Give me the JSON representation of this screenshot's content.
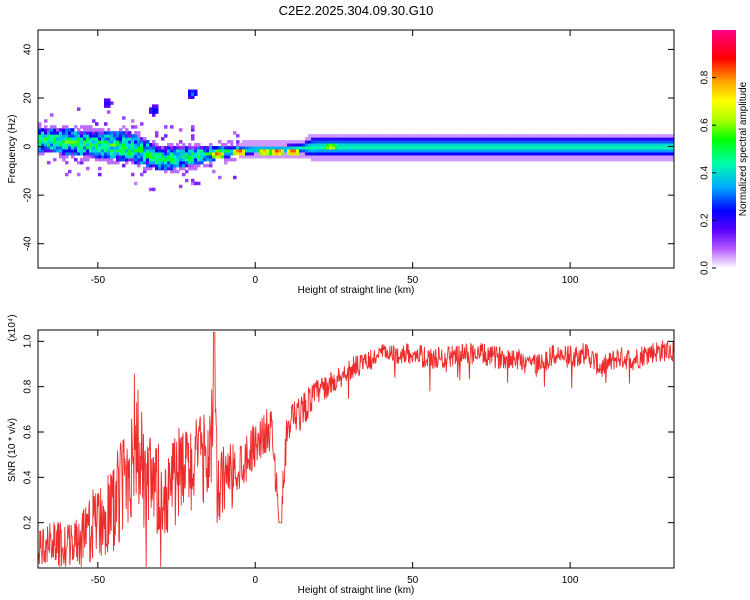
{
  "title": "C2E2.2025.304.09.30.G10",
  "chart_data": [
    {
      "type": "heatmap",
      "xlabel": "Height of straight line (km)",
      "ylabel": "Frequency (Hz)",
      "xlim": [
        -69,
        133
      ],
      "ylim": [
        -50,
        48
      ],
      "xticks": [
        -50,
        0,
        50,
        100
      ],
      "yticks": [
        -40,
        -20,
        0,
        20,
        40
      ],
      "colorbar": {
        "label": "Normalized spectral amplitude",
        "range": [
          0,
          1
        ],
        "ticks": [
          "0.0",
          "0.2",
          "0.4",
          "0.6",
          "0.8"
        ],
        "tick_values": [
          0,
          0.2,
          0.4,
          0.6,
          0.8
        ],
        "colors": [
          "#ffffff",
          "#b45bff",
          "#5a00ff",
          "#0000ff",
          "#00aaff",
          "#00ffaa",
          "#00ff00",
          "#aaff00",
          "#ffff00",
          "#ffaa00",
          "#ff0000",
          "#ff0088"
        ]
      },
      "band": {
        "center_hz": [
          [
            -69,
            3
          ],
          [
            -60,
            2
          ],
          [
            -50,
            1
          ],
          [
            -40,
            0
          ],
          [
            -30,
            -5
          ],
          [
            -20,
            -4
          ],
          [
            -10,
            -2
          ],
          [
            0,
            -1
          ],
          [
            10,
            -1
          ],
          [
            20,
            0
          ],
          [
            50,
            0
          ],
          [
            133,
            0
          ]
        ],
        "halfwidth_hz": [
          [
            -69,
            4
          ],
          [
            -40,
            5
          ],
          [
            -20,
            3
          ],
          [
            -5,
            1
          ],
          [
            15,
            1
          ],
          [
            18,
            3
          ],
          [
            133,
            3
          ]
        ]
      },
      "hotspots": [
        {
          "x": -12,
          "y": -3,
          "amp": 0.9
        },
        {
          "x": -5,
          "y": -2,
          "amp": 0.95
        },
        {
          "x": 3,
          "y": -2,
          "amp": 0.85
        },
        {
          "x": 7,
          "y": -2,
          "amp": 0.95
        },
        {
          "x": 12,
          "y": -2,
          "amp": 0.95
        },
        {
          "x": 24,
          "y": 0,
          "amp": 0.75
        },
        {
          "x": -58,
          "y": 2,
          "amp": 0.6
        },
        {
          "x": -40,
          "y": -3,
          "amp": 0.55
        },
        {
          "x": -30,
          "y": -5,
          "amp": 0.55
        }
      ],
      "outliers": [
        {
          "x": -20,
          "y": 22,
          "amp": 0.35
        },
        {
          "x": -32,
          "y": 15,
          "amp": 0.3
        },
        {
          "x": -47,
          "y": 18,
          "amp": 0.25
        }
      ]
    },
    {
      "type": "line",
      "xlabel": "Height of straight line (km)",
      "ylabel": "SNR (10 * v/v)",
      "scale_label": "(x10⁴)",
      "xlim": [
        -69,
        133
      ],
      "ylim": [
        0,
        1.05
      ],
      "xticks": [
        -50,
        0,
        50,
        100
      ],
      "yticks": [
        "0.2",
        "0.4",
        "0.6",
        "0.8",
        "1.0"
      ],
      "ytick_values": [
        0.2,
        0.4,
        0.6,
        0.8,
        1.0
      ],
      "color": "#ee2b2b",
      "series": [
        {
          "x": [
            -69,
            -65,
            -60,
            -55,
            -50,
            -45,
            -40,
            -38,
            -35,
            -30,
            -25,
            -20,
            -15,
            -13,
            -12,
            -10,
            -5,
            0,
            5,
            8,
            10,
            15,
            20,
            25,
            30,
            35,
            40,
            45,
            50,
            55,
            60,
            65,
            70,
            75,
            80,
            85,
            90,
            95,
            100,
            105,
            110,
            115,
            120,
            125,
            130,
            133
          ],
          "y": [
            0.08,
            0.12,
            0.1,
            0.12,
            0.22,
            0.25,
            0.45,
            0.6,
            0.35,
            0.32,
            0.4,
            0.45,
            0.5,
            0.7,
            0.3,
            0.4,
            0.45,
            0.55,
            0.62,
            0.2,
            0.6,
            0.7,
            0.78,
            0.82,
            0.88,
            0.9,
            0.95,
            0.94,
            0.95,
            0.92,
            0.93,
            0.94,
            0.95,
            0.93,
            0.93,
            0.92,
            0.9,
            0.94,
            0.93,
            0.95,
            0.88,
            0.93,
            0.92,
            0.95,
            0.96,
            0.96
          ],
          "spread": [
            0.08,
            0.1,
            0.1,
            0.12,
            0.18,
            0.2,
            0.3,
            0.3,
            0.25,
            0.22,
            0.22,
            0.2,
            0.2,
            0.3,
            0.2,
            0.15,
            0.12,
            0.1,
            0.1,
            0.05,
            0.1,
            0.08,
            0.06,
            0.05,
            0.05,
            0.05,
            0.04,
            0.04,
            0.05,
            0.05,
            0.05,
            0.05,
            0.05,
            0.05,
            0.05,
            0.05,
            0.05,
            0.05,
            0.05,
            0.05,
            0.05,
            0.05,
            0.05,
            0.05,
            0.05,
            0.05
          ]
        }
      ]
    }
  ]
}
